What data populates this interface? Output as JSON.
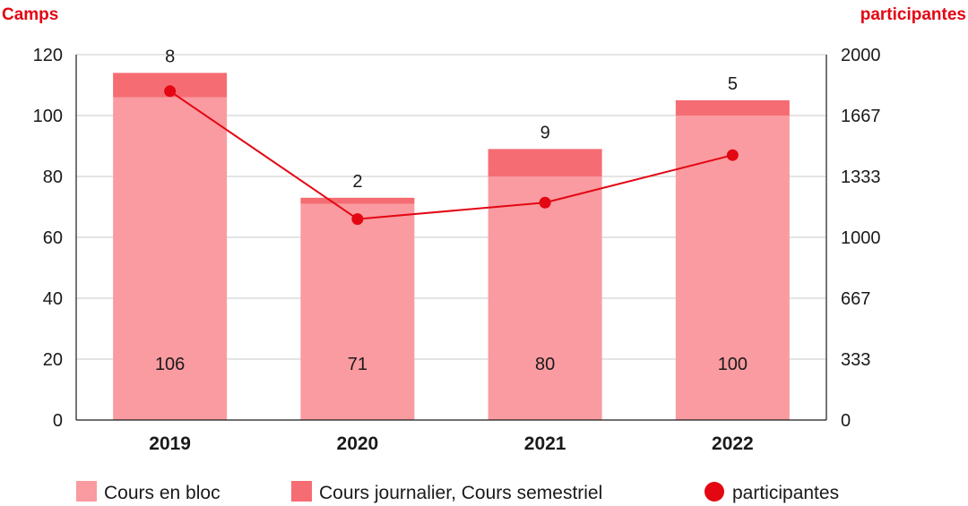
{
  "chart_data": {
    "type": "bar",
    "stacked": true,
    "categories": [
      "2019",
      "2020",
      "2021",
      "2022"
    ],
    "series": [
      {
        "name": "Cours en bloc",
        "values": [
          106,
          71,
          80,
          100
        ],
        "color": "#f99ba0",
        "axis": "left"
      },
      {
        "name": "Cours journalier, Cours semestriel",
        "values": [
          8,
          2,
          9,
          5
        ],
        "color": "#f56c73",
        "axis": "left"
      },
      {
        "name": "participantes",
        "type": "line",
        "values": [
          1800,
          1100,
          1190,
          1450
        ],
        "color": "#e30613",
        "axis": "right"
      }
    ],
    "y_left": {
      "title": "Camps",
      "ylim": [
        0,
        120
      ],
      "ticks": [
        "0",
        "20",
        "40",
        "60",
        "80",
        "100",
        "120"
      ]
    },
    "y_right": {
      "title": "participantes",
      "ylim": [
        0,
        2000
      ],
      "ticks": [
        "0",
        "333",
        "667",
        "1000",
        "1333",
        "1667",
        "2000"
      ]
    },
    "grid": true,
    "legend_position": "bottom"
  }
}
